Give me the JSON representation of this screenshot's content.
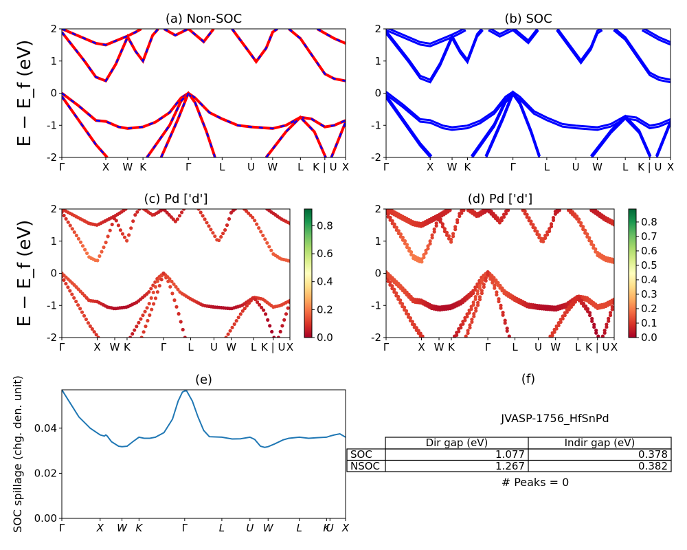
{
  "chart_data": [
    {
      "id": "a",
      "type": "line",
      "title": "(a) Non-SOC",
      "ylabel": "E − E_f (eV)",
      "ylim": [
        -2,
        2
      ],
      "yticks": [
        -2,
        -1,
        0,
        1,
        2
      ],
      "kpath": [
        "Γ",
        "X",
        "W",
        "K",
        "Γ",
        "L",
        "U",
        "W",
        "L",
        "K | U",
        "X"
      ],
      "kpos": [
        0,
        0.155,
        0.232,
        0.286,
        0.446,
        0.565,
        0.667,
        0.743,
        0.841,
        0.927,
        1.0
      ],
      "series": [
        {
          "color": "#ff0000",
          "dash": false,
          "bands": [
            [
              [
                0,
                -0.1
              ],
              [
                0.12,
                -1.6
              ],
              [
                0.16,
                -2.0
              ]
            ],
            [
              [
                0,
                0
              ],
              [
                0.06,
                -0.4
              ],
              [
                0.12,
                -0.85
              ],
              [
                0.155,
                -0.88
              ],
              [
                0.2,
                -1.05
              ],
              [
                0.232,
                -1.1
              ],
              [
                0.286,
                -1.05
              ],
              [
                0.33,
                -0.9
              ],
              [
                0.38,
                -0.6
              ],
              [
                0.42,
                -0.15
              ],
              [
                0.446,
                0
              ],
              [
                0.47,
                -0.15
              ],
              [
                0.52,
                -0.6
              ],
              [
                0.565,
                -0.8
              ],
              [
                0.62,
                -1.0
              ],
              [
                0.667,
                -1.05
              ],
              [
                0.743,
                -1.1
              ],
              [
                0.79,
                -1.0
              ],
              [
                0.841,
                -0.75
              ],
              [
                0.88,
                -0.8
              ],
              [
                0.927,
                -1.05
              ],
              [
                0.96,
                -1.0
              ],
              [
                1.0,
                -0.85
              ]
            ],
            [
              [
                0.3,
                -2.0
              ],
              [
                0.38,
                -1.0
              ],
              [
                0.42,
                -0.25
              ],
              [
                0.446,
                0
              ],
              [
                0.47,
                -0.3
              ],
              [
                0.51,
                -1.2
              ],
              [
                0.54,
                -2.0
              ]
            ],
            [
              [
                0.35,
                -2.0
              ],
              [
                0.41,
                -0.8
              ],
              [
                0.446,
                0
              ]
            ],
            [
              [
                0.72,
                -2.0
              ],
              [
                0.79,
                -1.2
              ],
              [
                0.841,
                -0.75
              ],
              [
                0.89,
                -1.2
              ],
              [
                0.93,
                -2.0
              ]
            ],
            [
              [
                0.95,
                -2.0
              ],
              [
                1.0,
                -0.9
              ]
            ],
            [
              [
                0,
                1.9
              ],
              [
                0.08,
                1.0
              ],
              [
                0.12,
                0.5
              ],
              [
                0.155,
                0.38
              ],
              [
                0.19,
                0.9
              ],
              [
                0.232,
                1.75
              ],
              [
                0.26,
                1.3
              ],
              [
                0.286,
                1.0
              ],
              [
                0.32,
                1.8
              ],
              [
                0.34,
                2.0
              ]
            ],
            [
              [
                0,
                2.0
              ],
              [
                0.12,
                1.55
              ],
              [
                0.155,
                1.5
              ],
              [
                0.232,
                1.78
              ],
              [
                0.26,
                1.9
              ],
              [
                0.28,
                2.0
              ]
            ],
            [
              [
                0.36,
                2.0
              ],
              [
                0.4,
                1.8
              ],
              [
                0.446,
                2.0
              ],
              [
                0.5,
                1.6
              ],
              [
                0.535,
                2.0
              ]
            ],
            [
              [
                0.6,
                2.0
              ],
              [
                0.667,
                1.2
              ],
              [
                0.685,
                0.98
              ],
              [
                0.72,
                1.4
              ],
              [
                0.743,
                1.9
              ],
              [
                0.76,
                2.0
              ]
            ],
            [
              [
                0.8,
                2.0
              ],
              [
                0.841,
                1.7
              ],
              [
                0.88,
                1.2
              ],
              [
                0.927,
                0.6
              ],
              [
                0.96,
                0.45
              ],
              [
                1.0,
                0.38
              ]
            ],
            [
              [
                0.9,
                2.0
              ],
              [
                0.96,
                1.7
              ],
              [
                1.0,
                1.55
              ]
            ]
          ]
        },
        {
          "color": "#0000ff",
          "dash": true
        }
      ]
    },
    {
      "id": "b",
      "type": "line",
      "title": "(b) SOC",
      "ylabel": "",
      "ylim": [
        -2,
        2
      ],
      "yticks": [
        -2,
        -1,
        0,
        1,
        2
      ],
      "kpath": [
        "Γ",
        "X",
        "W",
        "K",
        "Γ",
        "L",
        "U",
        "W",
        "L",
        "K | U",
        "X"
      ],
      "kpos": [
        0,
        0.155,
        0.232,
        0.286,
        0.446,
        0.565,
        0.667,
        0.743,
        0.841,
        0.927,
        1.0
      ],
      "series": [
        {
          "color": "#0000ff"
        }
      ]
    },
    {
      "id": "c",
      "type": "scatter",
      "title": "(c)  Pd ['d']",
      "ylabel": "E − E_f (eV)",
      "ylim": [
        -2,
        2
      ],
      "yticks": [
        -2,
        -1,
        0,
        1,
        2
      ],
      "kpath": [
        "Γ",
        "X",
        "W",
        "K",
        "Γ",
        "L",
        "U",
        "W",
        "L",
        "K | U",
        "X"
      ],
      "kpos": [
        0,
        0.155,
        0.232,
        0.286,
        0.446,
        0.565,
        0.667,
        0.743,
        0.841,
        0.927,
        1.0
      ],
      "colorbar": {
        "min": 0.0,
        "max": 0.92,
        "ticks": [
          "0.0",
          "0.2",
          "0.4",
          "0.6",
          "0.8"
        ],
        "tickvals": [
          0,
          0.2,
          0.4,
          0.6,
          0.8
        ]
      }
    },
    {
      "id": "d",
      "type": "scatter",
      "title": "(d) Pd ['d']",
      "ylabel": "",
      "ylim": [
        -2,
        2
      ],
      "yticks": [
        -2,
        -1,
        0,
        1,
        2
      ],
      "kpath": [
        "Γ",
        "X",
        "W",
        "K",
        "Γ",
        "L",
        "U",
        "W",
        "L",
        "K | U",
        "X"
      ],
      "kpos": [
        0,
        0.155,
        0.232,
        0.286,
        0.446,
        0.565,
        0.667,
        0.743,
        0.841,
        0.927,
        1.0
      ],
      "colorbar": {
        "min": 0.0,
        "max": 0.89,
        "ticks": [
          "0.0",
          "0.1",
          "0.2",
          "0.3",
          "0.4",
          "0.5",
          "0.6",
          "0.7",
          "0.8"
        ],
        "tickvals": [
          0,
          0.1,
          0.2,
          0.3,
          0.4,
          0.5,
          0.6,
          0.7,
          0.8
        ]
      }
    },
    {
      "id": "e",
      "type": "line",
      "title": "(e)",
      "ylabel": "SOC spillage (chg. den. unit)",
      "ylim": [
        0,
        0.057
      ],
      "yticks": [
        0.0,
        0.02,
        0.04
      ],
      "ytick_labels": [
        "0.00",
        "0.02",
        "0.04"
      ],
      "kpath": [
        "Γ",
        "X",
        "W",
        "K",
        "Γ",
        "L",
        "U",
        "W",
        "L",
        "K",
        "U",
        "X"
      ],
      "kpos": [
        0,
        0.135,
        0.212,
        0.272,
        0.433,
        0.564,
        0.663,
        0.727,
        0.837,
        0.933,
        0.945,
        1.0
      ],
      "series": [
        {
          "color": "#1f77b4",
          "points": [
            [
              0,
              0.057
            ],
            [
              0.03,
              0.051
            ],
            [
              0.06,
              0.045
            ],
            [
              0.1,
              0.04
            ],
            [
              0.135,
              0.037
            ],
            [
              0.15,
              0.0365
            ],
            [
              0.155,
              0.037
            ],
            [
              0.16,
              0.0365
            ],
            [
              0.175,
              0.034
            ],
            [
              0.2,
              0.032
            ],
            [
              0.212,
              0.0318
            ],
            [
              0.23,
              0.032
            ],
            [
              0.25,
              0.034
            ],
            [
              0.272,
              0.036
            ],
            [
              0.29,
              0.0355
            ],
            [
              0.31,
              0.0355
            ],
            [
              0.33,
              0.036
            ],
            [
              0.36,
              0.038
            ],
            [
              0.39,
              0.044
            ],
            [
              0.41,
              0.052
            ],
            [
              0.425,
              0.056
            ],
            [
              0.433,
              0.0565
            ],
            [
              0.44,
              0.0565
            ],
            [
              0.46,
              0.052
            ],
            [
              0.48,
              0.045
            ],
            [
              0.5,
              0.039
            ],
            [
              0.52,
              0.0362
            ],
            [
              0.564,
              0.036
            ],
            [
              0.6,
              0.0352
            ],
            [
              0.63,
              0.0353
            ],
            [
              0.663,
              0.036
            ],
            [
              0.68,
              0.035
            ],
            [
              0.7,
              0.032
            ],
            [
              0.715,
              0.0315
            ],
            [
              0.727,
              0.0318
            ],
            [
              0.75,
              0.033
            ],
            [
              0.78,
              0.0348
            ],
            [
              0.8,
              0.0355
            ],
            [
              0.837,
              0.036
            ],
            [
              0.87,
              0.0355
            ],
            [
              0.9,
              0.0358
            ],
            [
              0.933,
              0.036
            ],
            [
              0.945,
              0.0365
            ],
            [
              0.96,
              0.037
            ],
            [
              0.98,
              0.0375
            ],
            [
              1.0,
              0.036
            ]
          ]
        }
      ]
    }
  ],
  "panel_f": {
    "title": "(f)",
    "material": "JVASP-1756_HfSnPd",
    "table": {
      "columns": [
        "Dir gap (eV)",
        "Indir gap (eV)"
      ],
      "rows": [
        {
          "label": "SOC",
          "values": [
            "1.077",
            "0.378"
          ]
        },
        {
          "label": "NSOC",
          "values": [
            "1.267",
            "0.382"
          ]
        }
      ]
    },
    "peaks": "# Peaks = 0"
  }
}
